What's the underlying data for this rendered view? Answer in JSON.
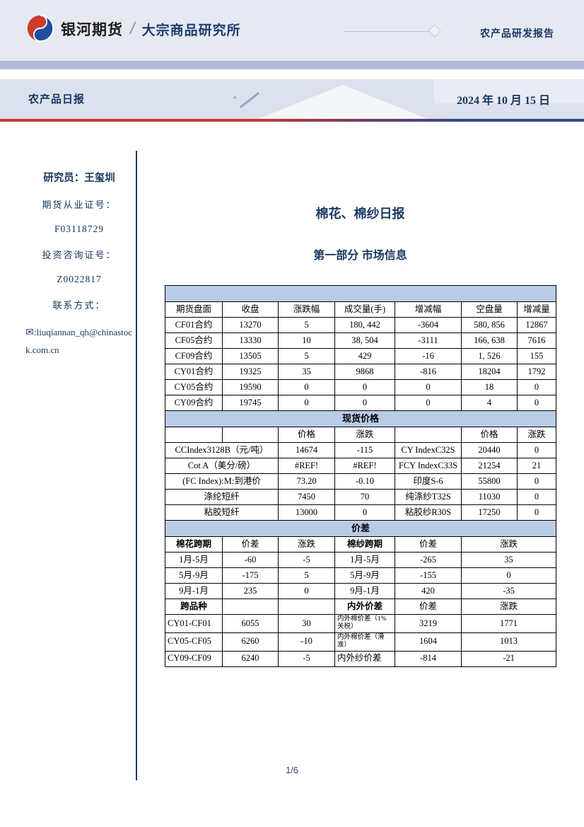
{
  "header": {
    "brand": "银河期货",
    "slash": "/",
    "institute": "大宗商品研究所",
    "report_type": "农产品研发报告"
  },
  "subheader": {
    "title": "农产品日报",
    "date": "2024 年 10 月 15 日"
  },
  "sidebar": {
    "researcher": "研究员：王玺圳",
    "label_license": "期货从业证号：",
    "license_no": "F03118729",
    "label_advisory": "投资咨询证号：",
    "advisory_no": "Z0022817",
    "label_contact": "联系方式：",
    "email": "liuqiannan_qh@chinastock.com.cn"
  },
  "icons": {
    "envelope": "✉:"
  },
  "main": {
    "title": "棉花、棉纱日报",
    "subtitle": "第一部分 市场信息"
  },
  "colors": {
    "logo_red": "#cf3a2d",
    "logo_blue": "#1d4fa1",
    "accent_navy": "#17365d",
    "table_band_blue": "#b9cce6",
    "gradient_red": "#cd3a2c",
    "gradient_blue": "#2e4a8f"
  },
  "table": {
    "rows": [
      {
        "band": ""
      },
      {
        "cells": [
          {
            "t": "期货盘面"
          },
          {
            "t": "收盘"
          },
          {
            "t": "涨跌幅"
          },
          {
            "t": "成交量(手)"
          },
          {
            "t": "增减幅"
          },
          {
            "t": "空盘量"
          },
          {
            "t": "增减量"
          }
        ]
      },
      {
        "cells": [
          {
            "t": "CF01合约"
          },
          {
            "t": "13270"
          },
          {
            "t": "5"
          },
          {
            "t": "180, 442"
          },
          {
            "t": "-3604"
          },
          {
            "t": "580, 856"
          },
          {
            "t": "12867"
          }
        ]
      },
      {
        "cells": [
          {
            "t": "CF05合约"
          },
          {
            "t": "13330"
          },
          {
            "t": "10"
          },
          {
            "t": "38, 504"
          },
          {
            "t": "-3111"
          },
          {
            "t": "166, 638"
          },
          {
            "t": "7616"
          }
        ]
      },
      {
        "cells": [
          {
            "t": "CF09合约"
          },
          {
            "t": "13505"
          },
          {
            "t": "5"
          },
          {
            "t": "429"
          },
          {
            "t": "-16"
          },
          {
            "t": "1, 526"
          },
          {
            "t": "155"
          }
        ]
      },
      {
        "cells": [
          {
            "t": "CY01合约"
          },
          {
            "t": "19325"
          },
          {
            "t": "35"
          },
          {
            "t": "9868"
          },
          {
            "t": "-816"
          },
          {
            "t": "18204"
          },
          {
            "t": "1792"
          }
        ]
      },
      {
        "cells": [
          {
            "t": "CY05合约"
          },
          {
            "t": "19590"
          },
          {
            "t": "0"
          },
          {
            "t": "0"
          },
          {
            "t": "0"
          },
          {
            "t": "18"
          },
          {
            "t": "0"
          }
        ]
      },
      {
        "cells": [
          {
            "t": "CY09合约"
          },
          {
            "t": "19745"
          },
          {
            "t": "0"
          },
          {
            "t": "0"
          },
          {
            "t": "0"
          },
          {
            "t": "4"
          },
          {
            "t": "0"
          }
        ]
      },
      {
        "band": "现货价格"
      },
      {
        "cells": [
          {
            "t": ""
          },
          {
            "t": ""
          },
          {
            "t": "价格"
          },
          {
            "t": "涨跌"
          },
          {
            "t": ""
          },
          {
            "t": "价格"
          },
          {
            "t": "涨跌"
          }
        ]
      },
      {
        "cells": [
          {
            "t": "CCIndex3128B（元/吨）",
            "span": 2
          },
          {
            "t": "14674"
          },
          {
            "t": "-115"
          },
          {
            "t": "CY IndexC32S"
          },
          {
            "t": "20440"
          },
          {
            "t": "0"
          }
        ]
      },
      {
        "cells": [
          {
            "t": "Cot A（美分/磅）",
            "span": 2
          },
          {
            "t": "#REF!"
          },
          {
            "t": "#REF!"
          },
          {
            "t": "FCY IndexC33S"
          },
          {
            "t": "21254"
          },
          {
            "t": "21"
          }
        ]
      },
      {
        "cells": [
          {
            "t": "(FC Index):M:到港价",
            "span": 2
          },
          {
            "t": "73.20"
          },
          {
            "t": "-0.10"
          },
          {
            "t": "印度S-6"
          },
          {
            "t": "55800"
          },
          {
            "t": "0"
          }
        ]
      },
      {
        "cells": [
          {
            "t": "涤纶短纤",
            "span": 2
          },
          {
            "t": "7450"
          },
          {
            "t": "70"
          },
          {
            "t": "纯涤纱T32S"
          },
          {
            "t": "11030"
          },
          {
            "t": "0"
          }
        ]
      },
      {
        "cells": [
          {
            "t": "粘胶短纤",
            "span": 2
          },
          {
            "t": "13000"
          },
          {
            "t": "0"
          },
          {
            "t": "粘胶纱R30S"
          },
          {
            "t": "17250"
          },
          {
            "t": "0"
          }
        ]
      },
      {
        "band": "价差"
      },
      {
        "cells": [
          {
            "t": "棉花跨期",
            "cls": "bold"
          },
          {
            "t": "价差"
          },
          {
            "t": "涨跌"
          },
          {
            "t": "棉纱跨期",
            "cls": "bold"
          },
          {
            "t": "价差"
          },
          {
            "t": "涨跌",
            "span": 2
          }
        ]
      },
      {
        "cells": [
          {
            "t": "1月-5月"
          },
          {
            "t": "-60"
          },
          {
            "t": "-5"
          },
          {
            "t": "1月-5月"
          },
          {
            "t": "-265"
          },
          {
            "t": "35",
            "span": 2
          }
        ]
      },
      {
        "cells": [
          {
            "t": "5月-9月"
          },
          {
            "t": "-175"
          },
          {
            "t": "5"
          },
          {
            "t": "5月-9月"
          },
          {
            "t": "-155"
          },
          {
            "t": "0",
            "span": 2
          }
        ]
      },
      {
        "cells": [
          {
            "t": "9月-1月"
          },
          {
            "t": "235"
          },
          {
            "t": "0"
          },
          {
            "t": "9月-1月"
          },
          {
            "t": "420"
          },
          {
            "t": "-35",
            "span": 2
          }
        ]
      },
      {
        "cells": [
          {
            "t": "跨品种",
            "cls": "bold"
          },
          {
            "t": ""
          },
          {
            "t": ""
          },
          {
            "t": "内外价差",
            "cls": "bold"
          },
          {
            "t": "价差"
          },
          {
            "t": "涨跌",
            "span": 2
          }
        ]
      },
      {
        "cells": [
          {
            "t": "CY01-CF01",
            "cls": "left"
          },
          {
            "t": "6055"
          },
          {
            "t": "30"
          },
          {
            "t": "内外棉价差（1%关税）",
            "cls": "left small"
          },
          {
            "t": "3219"
          },
          {
            "t": "1771",
            "span": 2
          }
        ]
      },
      {
        "cells": [
          {
            "t": "CY05-CF05",
            "cls": "left"
          },
          {
            "t": "6260"
          },
          {
            "t": "-10"
          },
          {
            "t": "内外棉价差（滑准）",
            "cls": "left small"
          },
          {
            "t": "1604"
          },
          {
            "t": "1013",
            "span": 2
          }
        ]
      },
      {
        "cells": [
          {
            "t": "CY09-CF09",
            "cls": "left"
          },
          {
            "t": "6240"
          },
          {
            "t": "-5"
          },
          {
            "t": "内外纱价差",
            "cls": "left"
          },
          {
            "t": "-814"
          },
          {
            "t": "-21",
            "span": 2
          }
        ]
      }
    ]
  },
  "footer": {
    "page": "1/6"
  }
}
